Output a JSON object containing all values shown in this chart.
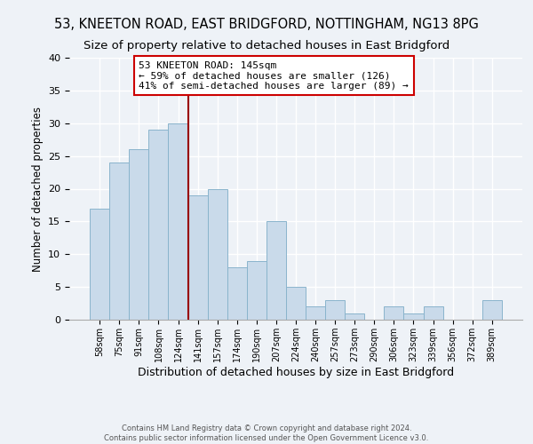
{
  "title1": "53, KNEETON ROAD, EAST BRIDGFORD, NOTTINGHAM, NG13 8PG",
  "title2": "Size of property relative to detached houses in East Bridgford",
  "xlabel": "Distribution of detached houses by size in East Bridgford",
  "ylabel": "Number of detached properties",
  "footer1": "Contains HM Land Registry data © Crown copyright and database right 2024.",
  "footer2": "Contains public sector information licensed under the Open Government Licence v3.0.",
  "bar_labels": [
    "58sqm",
    "75sqm",
    "91sqm",
    "108sqm",
    "124sqm",
    "141sqm",
    "157sqm",
    "174sqm",
    "190sqm",
    "207sqm",
    "224sqm",
    "240sqm",
    "257sqm",
    "273sqm",
    "290sqm",
    "306sqm",
    "323sqm",
    "339sqm",
    "356sqm",
    "372sqm",
    "389sqm"
  ],
  "bar_values": [
    17,
    24,
    26,
    29,
    30,
    19,
    20,
    8,
    9,
    15,
    5,
    2,
    3,
    1,
    0,
    2,
    1,
    2,
    0,
    0,
    3
  ],
  "bar_color": "#c9daea",
  "bar_edge_color": "#8ab4cc",
  "property_line_color": "#990000",
  "annotation_text": "53 KNEETON ROAD: 145sqm\n← 59% of detached houses are smaller (126)\n41% of semi-detached houses are larger (89) →",
  "annotation_box_color": "#ffffff",
  "annotation_box_edge_color": "#cc0000",
  "ylim": [
    0,
    40
  ],
  "yticks": [
    0,
    5,
    10,
    15,
    20,
    25,
    30,
    35,
    40
  ],
  "background_color": "#eef2f7",
  "plot_background": "#eef2f7",
  "grid_color": "#ffffff",
  "title1_fontsize": 10.5,
  "title2_fontsize": 9.5,
  "xlabel_fontsize": 9,
  "ylabel_fontsize": 8.5,
  "annotation_fontsize": 8.0,
  "footer_fontsize": 6.0
}
